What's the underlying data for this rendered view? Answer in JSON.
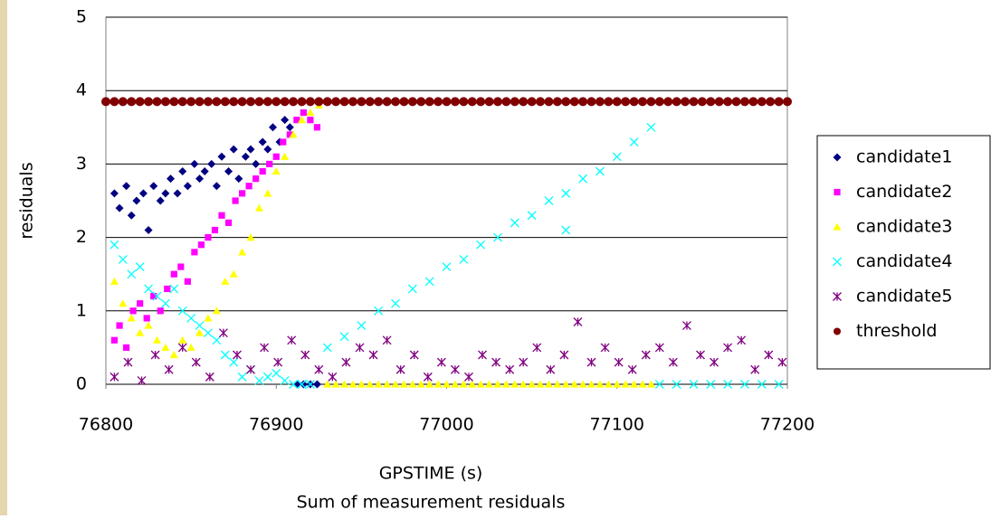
{
  "chart_data": {
    "type": "scatter",
    "title": "Sum of measurement residuals",
    "x_label": "GPSTIME (s)",
    "y_label": "residuals",
    "xlim": [
      76800,
      77200
    ],
    "xticks": [
      76800,
      76900,
      77000,
      77100,
      77200
    ],
    "ylim": [
      0,
      5
    ],
    "yticks": [
      0,
      1,
      2,
      3,
      4,
      5
    ],
    "grid": true,
    "legend": "right",
    "series": [
      {
        "name": "candidate1",
        "color": "#000080",
        "marker": "diamond",
        "x": [
          76805,
          76808,
          76812,
          76815,
          76818,
          76822,
          76825,
          76828,
          76832,
          76835,
          76838,
          76842,
          76845,
          76848,
          76852,
          76855,
          76858,
          76862,
          76865,
          76868,
          76872,
          76875,
          76878,
          76882,
          76885,
          76888,
          76892,
          76895,
          76898,
          76902,
          76905,
          76908,
          76912,
          76916,
          76920,
          76924
        ],
        "values": [
          2.6,
          2.4,
          2.7,
          2.3,
          2.5,
          2.6,
          2.1,
          2.7,
          2.5,
          2.6,
          2.8,
          2.6,
          2.9,
          2.7,
          3.0,
          2.8,
          2.9,
          3.0,
          2.7,
          3.1,
          2.9,
          3.2,
          2.8,
          3.1,
          3.2,
          3.0,
          3.3,
          3.2,
          3.5,
          3.3,
          3.6,
          3.5,
          0,
          0,
          0,
          0
        ]
      },
      {
        "name": "candidate2",
        "color": "#ff00ff",
        "marker": "square",
        "x": [
          76805,
          76808,
          76812,
          76816,
          76820,
          76824,
          76828,
          76832,
          76836,
          76840,
          76844,
          76848,
          76852,
          76856,
          76860,
          76864,
          76868,
          76872,
          76876,
          76880,
          76884,
          76888,
          76892,
          76896,
          76900,
          76904,
          76908,
          76912,
          76916,
          76920,
          76924
        ],
        "values": [
          0.6,
          0.8,
          0.5,
          1.0,
          1.1,
          0.9,
          1.2,
          1.0,
          1.3,
          1.5,
          1.6,
          1.4,
          1.8,
          1.9,
          2.0,
          2.1,
          2.3,
          2.2,
          2.5,
          2.6,
          2.7,
          2.8,
          2.9,
          3.0,
          3.1,
          3.3,
          3.4,
          3.6,
          3.7,
          3.6,
          3.5
        ]
      },
      {
        "name": "candidate3",
        "color": "#ffff00",
        "marker": "triangle",
        "x": [
          76805,
          76810,
          76815,
          76820,
          76825,
          76830,
          76835,
          76840,
          76845,
          76850,
          76855,
          76860,
          76865,
          76870,
          76875,
          76880,
          76885,
          76890,
          76895,
          76900,
          76905,
          76910,
          76915,
          76920,
          76925,
          76930,
          76935,
          76940,
          76945,
          76950,
          76955,
          76960,
          76965,
          76970,
          76975,
          76980,
          76985,
          76990,
          76995,
          77000,
          77005,
          77010,
          77015,
          77020,
          77025,
          77030,
          77035,
          77040,
          77045,
          77050,
          77055,
          77060,
          77065,
          77070,
          77075,
          77080,
          77085,
          77090,
          77095,
          77100,
          77105,
          77110,
          77115,
          77120
        ],
        "values": [
          1.4,
          1.1,
          0.9,
          0.7,
          0.8,
          0.6,
          0.5,
          0.4,
          0.6,
          0.5,
          0.7,
          0.9,
          1.0,
          1.4,
          1.5,
          1.8,
          2.0,
          2.4,
          2.6,
          2.9,
          3.1,
          3.4,
          3.6,
          3.7,
          3.8,
          0,
          0,
          0,
          0,
          0,
          0,
          0,
          0,
          0,
          0,
          0,
          0,
          0,
          0,
          0,
          0,
          0,
          0,
          0,
          0,
          0,
          0,
          0,
          0,
          0,
          0,
          0,
          0,
          0,
          0,
          0,
          0,
          0,
          0,
          0,
          0,
          0,
          0,
          0
        ]
      },
      {
        "name": "candidate4",
        "color": "#00ffff",
        "marker": "x",
        "x": [
          76805,
          76810,
          76815,
          76820,
          76825,
          76830,
          76835,
          76840,
          76845,
          76850,
          76855,
          76860,
          76865,
          76870,
          76875,
          76880,
          76885,
          76890,
          76895,
          76900,
          76905,
          76910,
          76915,
          76920,
          76930,
          76940,
          76950,
          76960,
          76970,
          76980,
          76990,
          77000,
          77010,
          77020,
          77030,
          77040,
          77050,
          77060,
          77070,
          77080,
          77090,
          77100,
          77110,
          77120,
          77070,
          77125,
          77135,
          77145,
          77155,
          77165,
          77175,
          77185,
          77195
        ],
        "values": [
          1.9,
          1.7,
          1.5,
          1.6,
          1.3,
          1.2,
          1.1,
          1.3,
          1.0,
          0.9,
          0.8,
          0.7,
          0.6,
          0.4,
          0.3,
          0.1,
          0.2,
          0.05,
          0.1,
          0.15,
          0.05,
          0,
          0,
          0,
          0.5,
          0.65,
          0.8,
          1.0,
          1.1,
          1.3,
          1.4,
          1.6,
          1.7,
          1.9,
          2.0,
          2.2,
          2.3,
          2.5,
          2.6,
          2.8,
          2.9,
          3.1,
          3.3,
          3.5,
          2.1,
          0,
          0,
          0,
          0,
          0,
          0,
          0,
          0
        ]
      },
      {
        "name": "candidate5",
        "color": "#800080",
        "marker": "star",
        "x": [
          76805,
          76813,
          76821,
          76829,
          76837,
          76845,
          76853,
          76861,
          76869,
          76877,
          76885,
          76893,
          76901,
          76909,
          76917,
          76925,
          76933,
          76941,
          76949,
          76957,
          76965,
          76973,
          76981,
          76989,
          76997,
          77005,
          77013,
          77021,
          77029,
          77037,
          77045,
          77053,
          77061,
          77069,
          77077,
          77085,
          77093,
          77101,
          77109,
          77117,
          77125,
          77133,
          77141,
          77149,
          77157,
          77165,
          77173,
          77181,
          77189,
          77197
        ],
        "values": [
          0.1,
          0.3,
          0.05,
          0.4,
          0.2,
          0.5,
          0.3,
          0.1,
          0.7,
          0.4,
          0.2,
          0.5,
          0.3,
          0.6,
          0.4,
          0.2,
          0.1,
          0.3,
          0.5,
          0.4,
          0.6,
          0.2,
          0.4,
          0.1,
          0.3,
          0.2,
          0.1,
          0.4,
          0.3,
          0.2,
          0.3,
          0.5,
          0.2,
          0.4,
          0.85,
          0.3,
          0.5,
          0.3,
          0.2,
          0.4,
          0.5,
          0.3,
          0.8,
          0.4,
          0.3,
          0.5,
          0.6,
          0.2,
          0.4,
          0.3
        ]
      },
      {
        "name": "threshold",
        "color": "#800000",
        "marker": "circle",
        "x": [
          76800,
          76805,
          76810,
          76815,
          76820,
          76825,
          76830,
          76835,
          76840,
          76845,
          76850,
          76855,
          76860,
          76865,
          76870,
          76875,
          76880,
          76885,
          76890,
          76895,
          76900,
          76905,
          76910,
          76915,
          76920,
          76925,
          76930,
          76935,
          76940,
          76945,
          76950,
          76955,
          76960,
          76965,
          76970,
          76975,
          76980,
          76985,
          76990,
          76995,
          77000,
          77005,
          77010,
          77015,
          77020,
          77025,
          77030,
          77035,
          77040,
          77045,
          77050,
          77055,
          77060,
          77065,
          77070,
          77075,
          77080,
          77085,
          77090,
          77095,
          77100,
          77105,
          77110,
          77115,
          77120,
          77125,
          77130,
          77135,
          77140,
          77145,
          77150,
          77155,
          77160,
          77165,
          77170,
          77175,
          77180,
          77185,
          77190,
          77195,
          77200
        ],
        "values": [
          3.85,
          3.85,
          3.85,
          3.85,
          3.85,
          3.85,
          3.85,
          3.85,
          3.85,
          3.85,
          3.85,
          3.85,
          3.85,
          3.85,
          3.85,
          3.85,
          3.85,
          3.85,
          3.85,
          3.85,
          3.85,
          3.85,
          3.85,
          3.85,
          3.85,
          3.85,
          3.85,
          3.85,
          3.85,
          3.85,
          3.85,
          3.85,
          3.85,
          3.85,
          3.85,
          3.85,
          3.85,
          3.85,
          3.85,
          3.85,
          3.85,
          3.85,
          3.85,
          3.85,
          3.85,
          3.85,
          3.85,
          3.85,
          3.85,
          3.85,
          3.85,
          3.85,
          3.85,
          3.85,
          3.85,
          3.85,
          3.85,
          3.85,
          3.85,
          3.85,
          3.85,
          3.85,
          3.85,
          3.85,
          3.85,
          3.85,
          3.85,
          3.85,
          3.85,
          3.85,
          3.85,
          3.85,
          3.85,
          3.85,
          3.85,
          3.85,
          3.85,
          3.85,
          3.85,
          3.85,
          3.85
        ]
      }
    ]
  }
}
